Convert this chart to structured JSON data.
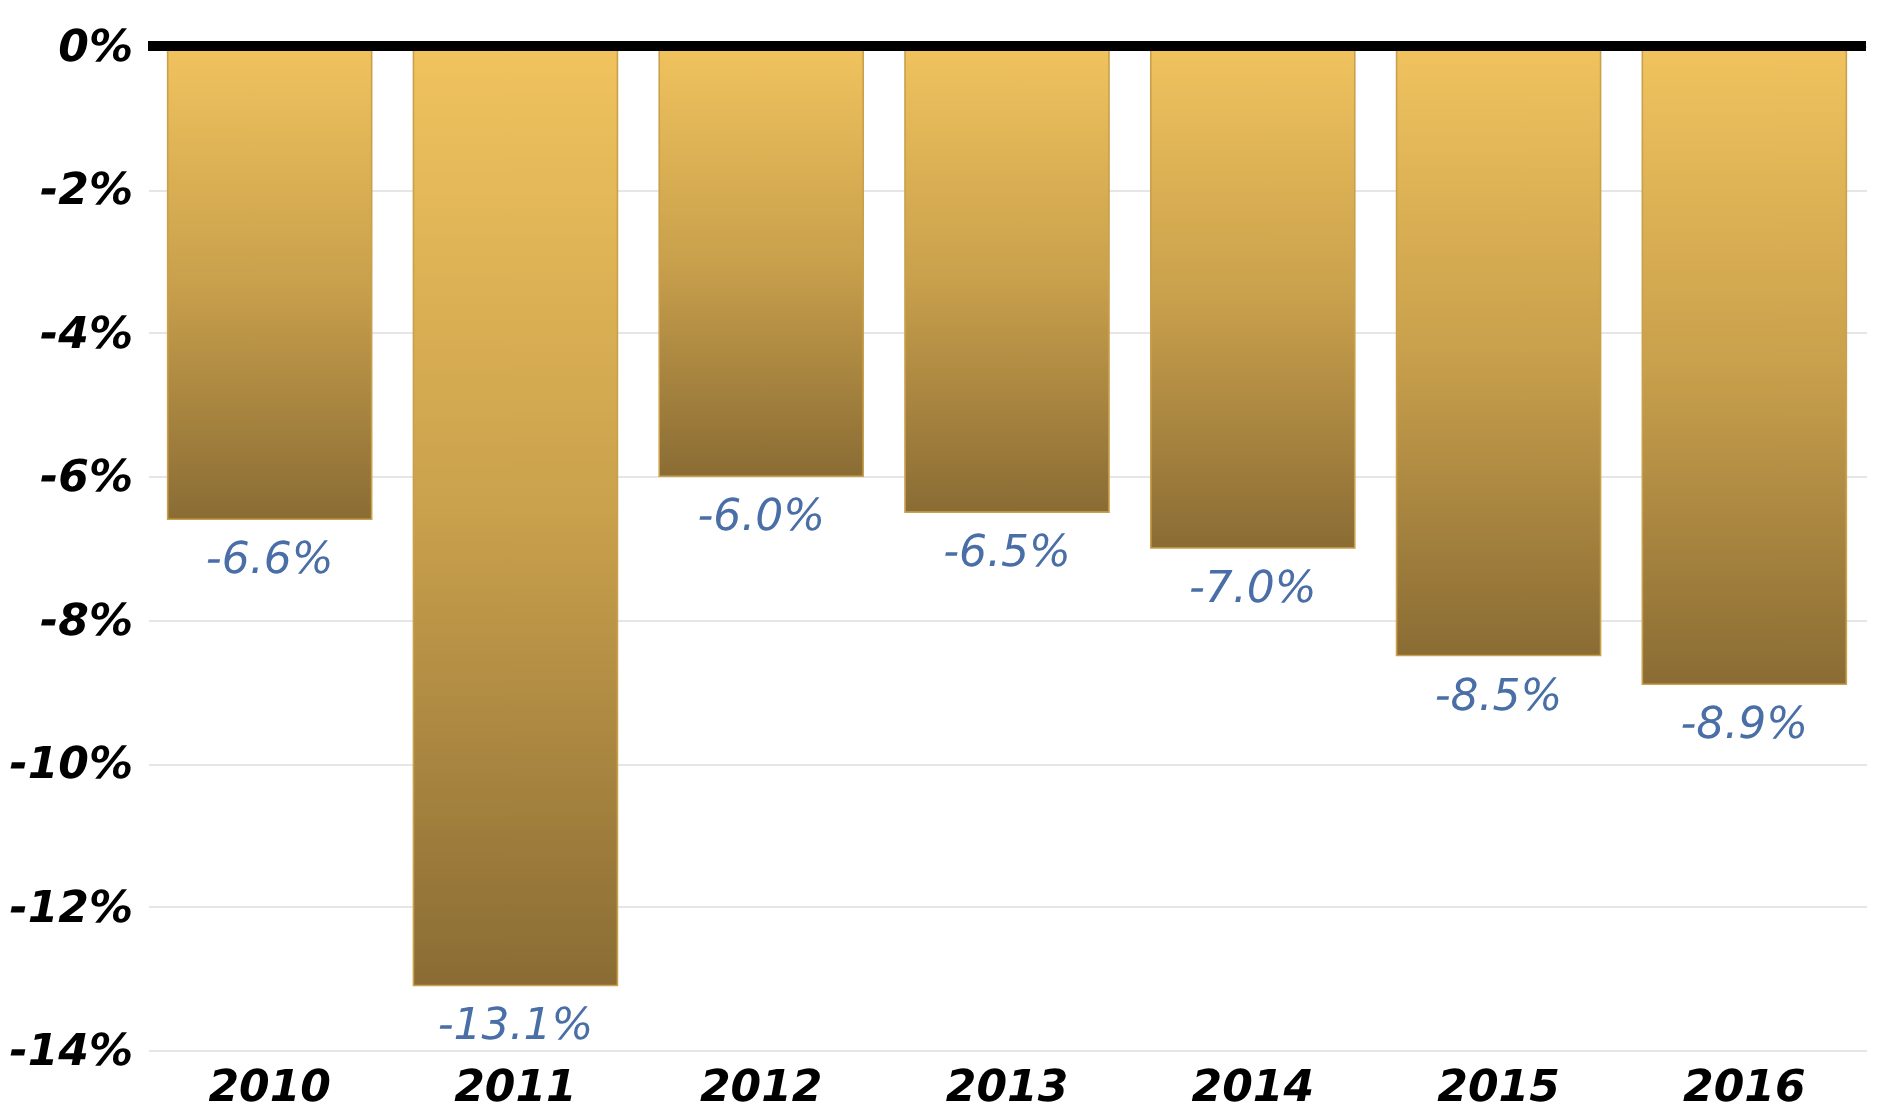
{
  "chart_data": {
    "type": "bar",
    "categories": [
      "2010",
      "2011",
      "2012",
      "2013",
      "2014",
      "2015",
      "2016"
    ],
    "values": [
      -6.6,
      -13.1,
      -6.0,
      -6.5,
      -7.0,
      -8.5,
      -8.9
    ],
    "value_labels": [
      "-6.6%",
      "-13.1%",
      "-6.0%",
      "-6.5%",
      "-7.0%",
      "-8.5%",
      "-8.9%"
    ],
    "color": "#c9a04c",
    "ylim": [
      -14,
      0
    ],
    "yticks": [
      {
        "value": -14,
        "label": "-14%"
      },
      {
        "value": -12,
        "label": "-12%"
      },
      {
        "value": -10,
        "label": "-10%"
      },
      {
        "value": -8,
        "label": "-8%"
      },
      {
        "value": -6,
        "label": "-6%"
      },
      {
        "value": -4,
        "label": "-4%"
      },
      {
        "value": -2,
        "label": "-2%"
      },
      {
        "value": 0,
        "label": "0%"
      }
    ],
    "grid": "y",
    "ref_lines": [
      {
        "axis": "y",
        "value": 0,
        "color": "#000000"
      }
    ]
  }
}
